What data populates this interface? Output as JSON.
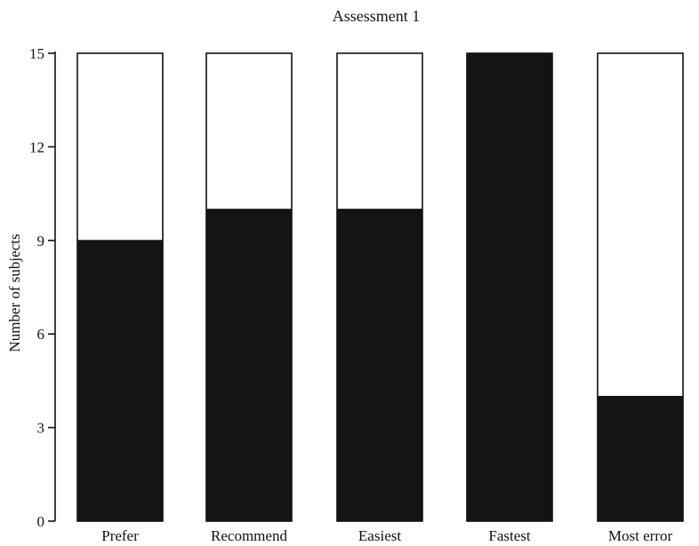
{
  "chart_data": {
    "type": "bar",
    "title": "Assessment 1",
    "ylabel": "Number of subjects",
    "xlabel": "",
    "ylim": [
      0,
      15
    ],
    "yticks": [
      0,
      3,
      6,
      9,
      12,
      15
    ],
    "categories": [
      "Prefer",
      "Recommend",
      "Easiest",
      "Fastest",
      "Most error"
    ],
    "total": 15,
    "values": [
      9,
      10,
      10,
      15,
      4
    ],
    "colors": {
      "filled": "#141414",
      "remainder": "#ffffff"
    }
  }
}
